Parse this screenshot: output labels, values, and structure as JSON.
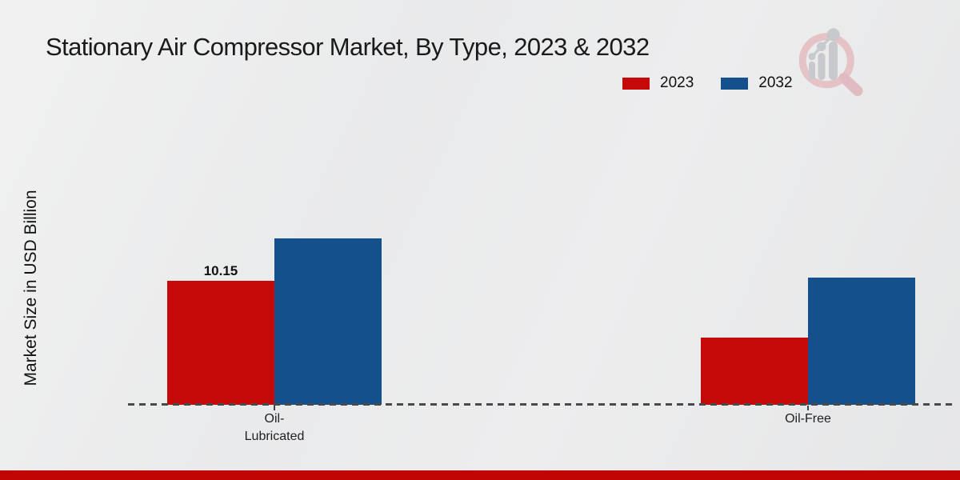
{
  "page": {
    "background_color": "#e9eaeb",
    "footer_bar_color": "#c10505"
  },
  "header": {
    "title": "Stationary Air Compressor Market, By Type, 2023 & 2032"
  },
  "watermark": {
    "icon": "magnifier-bar-chart-logo",
    "ring_color": "#e4c2c6",
    "bars_color": "#c8c9cc"
  },
  "chart_data": {
    "type": "bar",
    "title": "Stationary Air Compressor Market, By Type, 2023 & 2032",
    "categories": [
      "Oil-Lubricated",
      "Oil-Free"
    ],
    "category_display": [
      "Oil-\nLubricated",
      "Oil-Free"
    ],
    "series": [
      {
        "name": "2023",
        "color": "#c50808",
        "values": [
          10.15,
          5.5
        ],
        "bar_labels": [
          "10.15",
          ""
        ]
      },
      {
        "name": "2032",
        "color": "#14508c",
        "values": [
          13.6,
          10.4
        ],
        "bar_labels": [
          "",
          ""
        ]
      }
    ],
    "xlabel": "",
    "ylabel": "Market Size in USD Billion",
    "ylim": [
      0,
      23.3
    ],
    "grid": false,
    "y_ticks_visible": false,
    "legend_position": "top-right",
    "baseline_style": "dashed"
  }
}
